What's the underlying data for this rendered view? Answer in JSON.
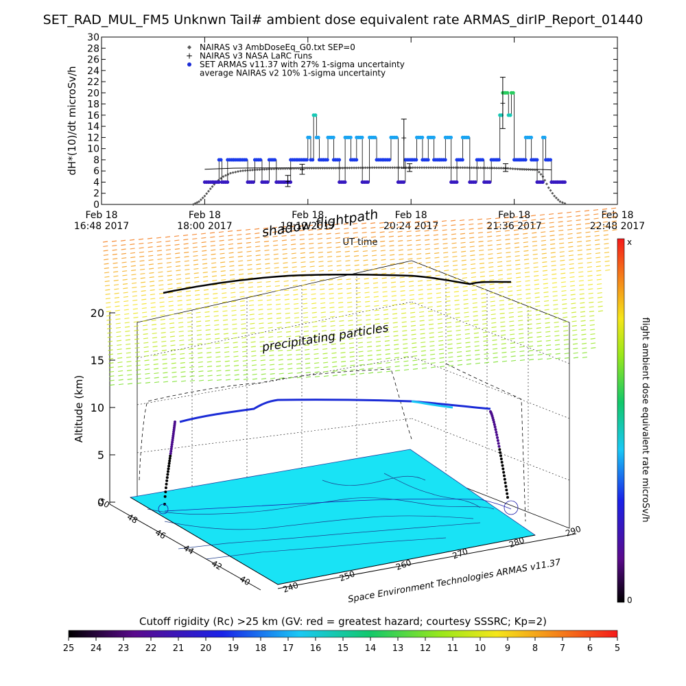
{
  "title": "SET_RAD_MUL_FM5 Unknwn Tail#  ambient dose equivalent rate ARMAS_dirIP_Report_01440",
  "chart_data": [
    {
      "type": "line",
      "ylabel": "dH*(10)/dt microSv/h",
      "xlabel": "UT time",
      "ylim": [
        0,
        30
      ],
      "y_ticks": [
        "0",
        "2",
        "4",
        "6",
        "8",
        "10",
        "12",
        "14",
        "16",
        "18",
        "20",
        "22",
        "24",
        "26",
        "28",
        "30"
      ],
      "x_ticks": [
        {
          "line1": "Feb 18",
          "line2": "16:48 2017"
        },
        {
          "line1": "Feb 18",
          "line2": "18:00 2017"
        },
        {
          "line1": "Feb 18",
          "line2": "19:12 2017"
        },
        {
          "line1": "Feb 18",
          "line2": "20:24 2017"
        },
        {
          "line1": "Feb 18",
          "line2": "21:36 2017"
        },
        {
          "line1": "Feb 18",
          "line2": "22:48 2017"
        }
      ],
      "x_tick_minutes": [
        1008,
        1080,
        1152,
        1224,
        1296,
        1368
      ],
      "xlim_minutes": [
        1008,
        1368
      ],
      "legend": [
        "NAIRAS v3 AmbDoseEq_G0.txt SEP=0",
        "NAIRAS v3 NASA LaRC runs",
        "SET ARMAS v11.37 with 27% 1-sigma uncertainty",
        "average NAIRAS v2 10% 1-sigma uncertainty"
      ],
      "series": [
        {
          "name": "NAIRAS v3 AmbDoseEq_G0.txt SEP=0",
          "x_minutes": [
            1072,
            1076,
            1080,
            1084,
            1088,
            1093,
            1098,
            1105,
            1115,
            1130,
            1150,
            1170,
            1200,
            1230,
            1260,
            1290,
            1300,
            1312,
            1316,
            1320,
            1324,
            1328,
            1333
          ],
          "y": [
            0.0,
            0.5,
            1.5,
            2.8,
            4.0,
            5.0,
            5.6,
            6.0,
            6.2,
            6.4,
            6.5,
            6.5,
            6.6,
            6.6,
            6.6,
            6.5,
            6.3,
            6.2,
            5.0,
            3.0,
            1.5,
            0.5,
            0.0
          ]
        },
        {
          "name": "NAIRAS v3 NASA LaRC runs",
          "points": [
            {
              "x": 1138,
              "y": 4.2,
              "lo": 3.2,
              "hi": 5.2
            },
            {
              "x": 1148,
              "y": 6.3,
              "lo": 5.4,
              "hi": 7.2
            },
            {
              "x": 1219,
              "y": 12.0,
              "lo": 6.5,
              "hi": 15.3
            },
            {
              "x": 1288,
              "y": 18.2,
              "lo": 13.6,
              "hi": 22.8
            },
            {
              "x": 1223,
              "y": 6.6,
              "lo": 5.9,
              "hi": 7.3
            },
            {
              "x": 1290,
              "y": 6.6,
              "lo": 5.9,
              "hi": 7.3
            }
          ]
        },
        {
          "name": "SET ARMAS v11.37 with 27% 1-sigma uncertainty",
          "x_minutes": [
            1080,
            1086,
            1090,
            1092,
            1096,
            1100,
            1105,
            1110,
            1115,
            1120,
            1125,
            1130,
            1136,
            1140,
            1145,
            1150,
            1152,
            1154,
            1156,
            1158,
            1160,
            1163,
            1166,
            1170,
            1174,
            1178,
            1182,
            1186,
            1190,
            1195,
            1200,
            1205,
            1210,
            1215,
            1220,
            1225,
            1228,
            1232,
            1236,
            1240,
            1244,
            1248,
            1252,
            1256,
            1260,
            1265,
            1270,
            1275,
            1280,
            1284,
            1286,
            1288,
            1290,
            1292,
            1294,
            1296,
            1300,
            1304,
            1308,
            1312,
            1316,
            1318,
            1320,
            1322,
            1326,
            1330
          ],
          "y": [
            4,
            4,
            8,
            4,
            8,
            8,
            8,
            4,
            8,
            4,
            8,
            4,
            4,
            8,
            8,
            8,
            12,
            8,
            16,
            12,
            8,
            8,
            12,
            8,
            4,
            12,
            8,
            12,
            4,
            12,
            8,
            8,
            12,
            4,
            8,
            8,
            12,
            8,
            12,
            8,
            8,
            12,
            4,
            8,
            12,
            4,
            8,
            4,
            8,
            8,
            16,
            20,
            20,
            16,
            20,
            8,
            8,
            12,
            8,
            4,
            12,
            8,
            8,
            4,
            4,
            4
          ],
          "color_scale": "rainbow"
        },
        {
          "name": "average NAIRAS v2 10% 1-sigma uncertainty",
          "x_minutes": [
            1080,
            1100,
            1150,
            1200,
            1250,
            1300,
            1322
          ],
          "y": [
            6.3,
            6.5,
            6.6,
            6.6,
            6.6,
            6.4,
            6.2
          ]
        }
      ]
    },
    {
      "type": "scatter",
      "subtype": "3d-flight-profile",
      "annotations": [
        "shadow flightpath",
        "precipitating particles"
      ],
      "ylabel": "Altitude (km)",
      "z_ticks": [
        "0",
        "5",
        "10",
        "15",
        "20"
      ],
      "lat_ticks": [
        "50",
        "48",
        "46",
        "44",
        "42",
        "40"
      ],
      "lon_ticks": [
        "240",
        "250",
        "260",
        "270",
        "280",
        "290"
      ],
      "credit": "Space Environment Technologies ARMAS v11.37",
      "flight_track": [
        {
          "t": 0.0,
          "alt_km": 0.3
        },
        {
          "t": 0.05,
          "alt_km": 4.0
        },
        {
          "t": 0.1,
          "alt_km": 8.5
        },
        {
          "t": 0.3,
          "alt_km": 9.8
        },
        {
          "t": 0.35,
          "alt_km": 10.7
        },
        {
          "t": 0.55,
          "alt_km": 10.8
        },
        {
          "t": 0.75,
          "alt_km": 10.5
        },
        {
          "t": 0.9,
          "alt_km": 10.0
        },
        {
          "t": 0.95,
          "alt_km": 6.0
        },
        {
          "t": 1.0,
          "alt_km": 0.3
        }
      ]
    },
    {
      "type": "heatmap",
      "subtype": "colorbar",
      "title": "Cutoff rigidity (Rc) >25 km (GV: red = greatest hazard; courtesy SSSRC; Kp=2)",
      "tick_labels": [
        "25",
        "24",
        "23",
        "22",
        "21",
        "20",
        "19",
        "18",
        "17",
        "16",
        "15",
        "14",
        "13",
        "12",
        "11",
        "10",
        "9",
        "8",
        "7",
        "6",
        "5"
      ]
    },
    {
      "type": "heatmap",
      "subtype": "colorbar-vertical",
      "title": "flight ambient dose equivalent rate microSv/h",
      "top_label": "x",
      "bottom_label": "0"
    }
  ],
  "colors": {
    "armas_series": "#1a2bd6",
    "nairas_v3": "#555555",
    "map_fill": "#19e3f5",
    "background": "#ffffff"
  }
}
